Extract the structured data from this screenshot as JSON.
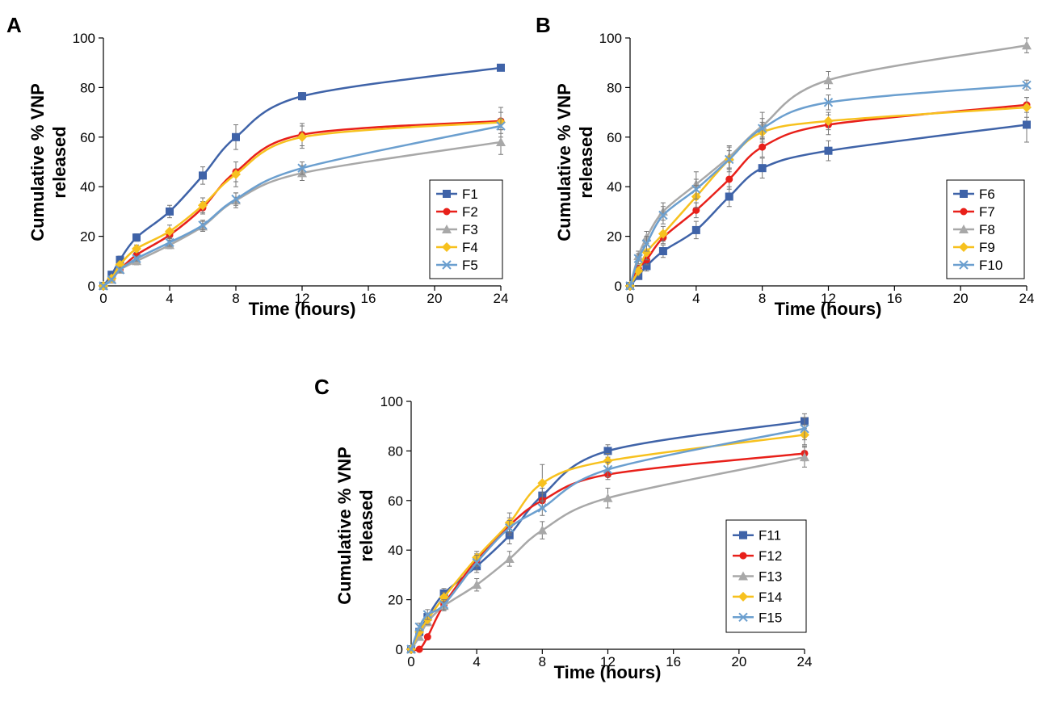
{
  "chart_data": [
    {
      "panel": "A",
      "type": "line",
      "xlabel": "Time (hours)",
      "ylabel": [
        "Cumulative % VNP",
        "released"
      ],
      "x_ticks": [
        0,
        4,
        8,
        12,
        16,
        20,
        24
      ],
      "y_ticks": [
        0,
        20,
        40,
        60,
        80,
        100
      ],
      "xlim": [
        0,
        24
      ],
      "ylim": [
        0,
        100
      ],
      "grid": false,
      "legend_position": "bottom-right",
      "x": [
        0,
        0.5,
        1,
        2,
        4,
        6,
        8,
        12,
        24
      ],
      "series": [
        {
          "name": "F1",
          "color": "#3f63a8",
          "marker": "square",
          "values": [
            0,
            4.5,
            10.5,
            19.5,
            30,
            44.5,
            60,
            76.5,
            88
          ],
          "errors": [
            0,
            1,
            1.5,
            1.5,
            2.5,
            3.5,
            5,
            1.5,
            1
          ]
        },
        {
          "name": "F2",
          "color": "#e8201a",
          "marker": "circle",
          "values": [
            0,
            2.5,
            6.5,
            12.5,
            20.5,
            31.5,
            46,
            61,
            66.5
          ],
          "errors": [
            0,
            1,
            1,
            1.5,
            2,
            2.5,
            4,
            4.5,
            3.5
          ]
        },
        {
          "name": "F3",
          "color": "#a8a8a8",
          "marker": "triangle",
          "values": [
            0,
            2.5,
            6.5,
            10,
            16.5,
            24,
            34.5,
            45.5,
            58
          ],
          "errors": [
            0,
            0.5,
            1,
            1.5,
            1.5,
            2,
            3,
            3,
            5
          ]
        },
        {
          "name": "F4",
          "color": "#f7c11e",
          "marker": "diamond",
          "values": [
            0,
            3,
            8.5,
            15,
            22,
            32.5,
            45,
            60,
            66
          ],
          "errors": [
            0,
            1,
            1.5,
            1.5,
            2.5,
            3,
            5,
            4.5,
            6
          ]
        },
        {
          "name": "F5",
          "color": "#6b9fcf",
          "marker": "x",
          "values": [
            0,
            2.5,
            6.5,
            11,
            17.5,
            24.5,
            35,
            47.5,
            64.5
          ],
          "errors": [
            0,
            0.5,
            1,
            1,
            1.5,
            2,
            2.5,
            2.5,
            3
          ]
        }
      ]
    },
    {
      "panel": "B",
      "type": "line",
      "xlabel": "Time (hours)",
      "ylabel": [
        "Cumulative % VNP",
        "released"
      ],
      "x_ticks": [
        0,
        4,
        8,
        12,
        16,
        20,
        24
      ],
      "y_ticks": [
        0,
        20,
        40,
        60,
        80,
        100
      ],
      "xlim": [
        0,
        24
      ],
      "ylim": [
        0,
        100
      ],
      "grid": false,
      "legend_position": "bottom-right",
      "x": [
        0,
        0.5,
        1,
        2,
        4,
        6,
        8,
        12,
        24
      ],
      "series": [
        {
          "name": "F6",
          "color": "#3f63a8",
          "marker": "square",
          "values": [
            0,
            4,
            8,
            14,
            22.5,
            36,
            47.5,
            54.5,
            65
          ],
          "errors": [
            0,
            1,
            2,
            2.5,
            3.5,
            4,
            4,
            4,
            7
          ]
        },
        {
          "name": "F7",
          "color": "#e8201a",
          "marker": "circle",
          "values": [
            0,
            7,
            10.5,
            19.5,
            30.5,
            43,
            56,
            65,
            73
          ],
          "errors": [
            0,
            1.5,
            2,
            2.5,
            3,
            4,
            4,
            4,
            3
          ]
        },
        {
          "name": "F8",
          "color": "#a8a8a8",
          "marker": "triangle",
          "values": [
            0,
            12,
            19.5,
            30,
            41,
            52,
            64.5,
            83,
            97
          ],
          "errors": [
            0,
            2,
            2.5,
            3.5,
            5,
            4.5,
            5.5,
            3.5,
            3
          ]
        },
        {
          "name": "F9",
          "color": "#f7c11e",
          "marker": "diamond",
          "values": [
            0,
            6,
            13.5,
            21,
            36,
            51,
            62,
            66.5,
            72
          ],
          "errors": [
            0,
            2,
            3,
            3,
            4.5,
            5,
            4,
            3.5,
            4
          ]
        },
        {
          "name": "F10",
          "color": "#6b9fcf",
          "marker": "x",
          "values": [
            0,
            11,
            17,
            28.5,
            39,
            51,
            63.5,
            74,
            81
          ],
          "errors": [
            0,
            2,
            3,
            3.5,
            4,
            3.5,
            4,
            3,
            2
          ]
        }
      ]
    },
    {
      "panel": "C",
      "type": "line",
      "xlabel": "Time (hours)",
      "ylabel": [
        "Cumulative % VNP",
        "released"
      ],
      "x_ticks": [
        0,
        4,
        8,
        12,
        16,
        20,
        24
      ],
      "y_ticks": [
        0,
        20,
        40,
        60,
        80,
        100
      ],
      "xlim": [
        0,
        24
      ],
      "ylim": [
        0,
        100
      ],
      "grid": false,
      "legend_position": "right",
      "x": [
        0,
        0.5,
        1,
        2,
        4,
        6,
        8,
        12,
        24
      ],
      "series": [
        {
          "name": "F11",
          "color": "#3f63a8",
          "marker": "square",
          "values": [
            0,
            7,
            13,
            22.5,
            33.5,
            46,
            62,
            80,
            92
          ],
          "errors": [
            0,
            1.5,
            1.5,
            2,
            2.5,
            3.5,
            3,
            2.5,
            3
          ]
        },
        {
          "name": "F12",
          "color": "#e8201a",
          "marker": "circle",
          "values": [
            0,
            0,
            5,
            18,
            36,
            50,
            60,
            70.5,
            79
          ],
          "errors": [
            0,
            0.5,
            1,
            1.5,
            2.5,
            3,
            3,
            2,
            3
          ]
        },
        {
          "name": "F13",
          "color": "#a8a8a8",
          "marker": "triangle",
          "values": [
            0,
            5,
            11,
            17.5,
            26,
            36.5,
            48,
            61,
            77.5
          ],
          "errors": [
            0,
            1,
            1.5,
            2,
            2.5,
            3,
            3.5,
            4,
            4
          ]
        },
        {
          "name": "F14",
          "color": "#f7c11e",
          "marker": "diamond",
          "values": [
            0,
            7,
            12,
            21,
            37,
            51,
            67,
            76,
            86.5
          ],
          "errors": [
            0,
            1.5,
            2,
            2,
            2.5,
            4,
            7.5,
            3,
            4
          ]
        },
        {
          "name": "F15",
          "color": "#6b9fcf",
          "marker": "x",
          "values": [
            0,
            9,
            14,
            18,
            35,
            49,
            57,
            72.5,
            89
          ],
          "errors": [
            0,
            1.5,
            2,
            2,
            3,
            3,
            3,
            3,
            4.5
          ]
        }
      ]
    }
  ]
}
